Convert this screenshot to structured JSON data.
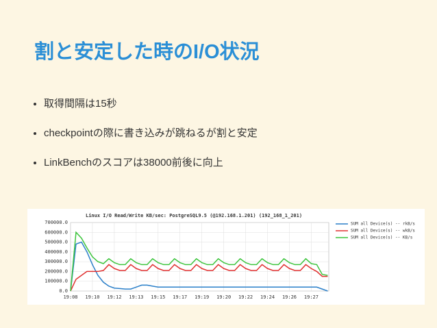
{
  "title": "割と安定した時のI/O状況",
  "bullets": [
    "取得間隔は15秒",
    "checkpointの際に書き込みが跳ねるが割と安定",
    "LinkBenchのスコアは38000前後に向上"
  ],
  "chart_data": {
    "type": "line",
    "title": "Linux I/O Read/Write KB/sec: PostgreSQL9.5 (@192.168.1.201) (192_168_1_201)",
    "x": [
      0,
      0.25,
      0.5,
      0.75,
      1,
      1.25,
      1.5,
      1.75,
      2,
      2.25,
      2.5,
      2.75,
      3,
      3.25,
      3.5,
      3.75,
      4,
      4.25,
      4.5,
      4.75,
      5,
      5.25,
      5.5,
      5.75,
      6,
      6.25,
      6.5,
      6.75,
      7,
      7.25,
      7.5,
      7.75,
      8,
      8.25,
      8.5,
      8.75,
      9,
      9.25,
      9.5,
      9.75,
      10,
      10.25,
      10.5,
      10.75,
      11,
      11.25,
      11.5,
      11.75
    ],
    "series": [
      {
        "name": "SUM all Device(s) -- rkB/s",
        "color": "#2a7fc9",
        "values": [
          0,
          480000,
          500000,
          400000,
          270000,
          160000,
          90000,
          50000,
          30000,
          25000,
          20000,
          20000,
          40000,
          60000,
          60000,
          50000,
          40000,
          40000,
          40000,
          40000,
          40000,
          40000,
          40000,
          40000,
          40000,
          40000,
          40000,
          40000,
          40000,
          40000,
          40000,
          40000,
          40000,
          40000,
          40000,
          40000,
          40000,
          40000,
          40000,
          40000,
          40000,
          40000,
          40000,
          40000,
          40000,
          40000,
          20000,
          0
        ]
      },
      {
        "name": "SUM all Device(s) -- wkB/s",
        "color": "#e03030",
        "values": [
          0,
          120000,
          160000,
          200000,
          200000,
          200000,
          210000,
          270000,
          230000,
          210000,
          210000,
          270000,
          230000,
          210000,
          210000,
          270000,
          230000,
          210000,
          210000,
          270000,
          230000,
          210000,
          210000,
          270000,
          230000,
          210000,
          210000,
          270000,
          230000,
          210000,
          210000,
          270000,
          230000,
          210000,
          210000,
          270000,
          230000,
          210000,
          210000,
          270000,
          230000,
          210000,
          210000,
          270000,
          230000,
          200000,
          150000,
          150000
        ]
      },
      {
        "name": "SUM all Device(s) -- KB/s",
        "color": "#3cc43c",
        "values": [
          0,
          600000,
          540000,
          440000,
          350000,
          300000,
          280000,
          330000,
          290000,
          270000,
          270000,
          330000,
          290000,
          270000,
          270000,
          330000,
          290000,
          270000,
          270000,
          330000,
          290000,
          270000,
          270000,
          330000,
          290000,
          270000,
          270000,
          330000,
          290000,
          270000,
          270000,
          330000,
          290000,
          270000,
          270000,
          330000,
          290000,
          270000,
          270000,
          330000,
          290000,
          270000,
          270000,
          330000,
          280000,
          270000,
          170000,
          160000
        ]
      }
    ],
    "xlim": [
      0,
      11.8
    ],
    "xticks": [
      {
        "value": 0,
        "label": "19:08"
      },
      {
        "value": 1,
        "label": "19:10"
      },
      {
        "value": 2,
        "label": "19:12"
      },
      {
        "value": 3,
        "label": "19:13"
      },
      {
        "value": 4,
        "label": "19:15"
      },
      {
        "value": 5,
        "label": "19:17"
      },
      {
        "value": 6,
        "label": "19:19"
      },
      {
        "value": 7,
        "label": "19:20"
      },
      {
        "value": 8,
        "label": "19:22"
      },
      {
        "value": 9,
        "label": "19:24"
      },
      {
        "value": 10,
        "label": "19:26"
      },
      {
        "value": 11,
        "label": "19:27"
      }
    ],
    "ylim": [
      0,
      700000
    ],
    "yticks": [
      {
        "value": 0,
        "label": "0.0"
      },
      {
        "value": 100000,
        "label": "100000.0"
      },
      {
        "value": 200000,
        "label": "200000.0"
      },
      {
        "value": 300000,
        "label": "300000.0"
      },
      {
        "value": 400000,
        "label": "400000.0"
      },
      {
        "value": 500000,
        "label": "500000.0"
      },
      {
        "value": 600000,
        "label": "600000.0"
      },
      {
        "value": 700000,
        "label": "700000.0"
      }
    ],
    "grid": true
  }
}
